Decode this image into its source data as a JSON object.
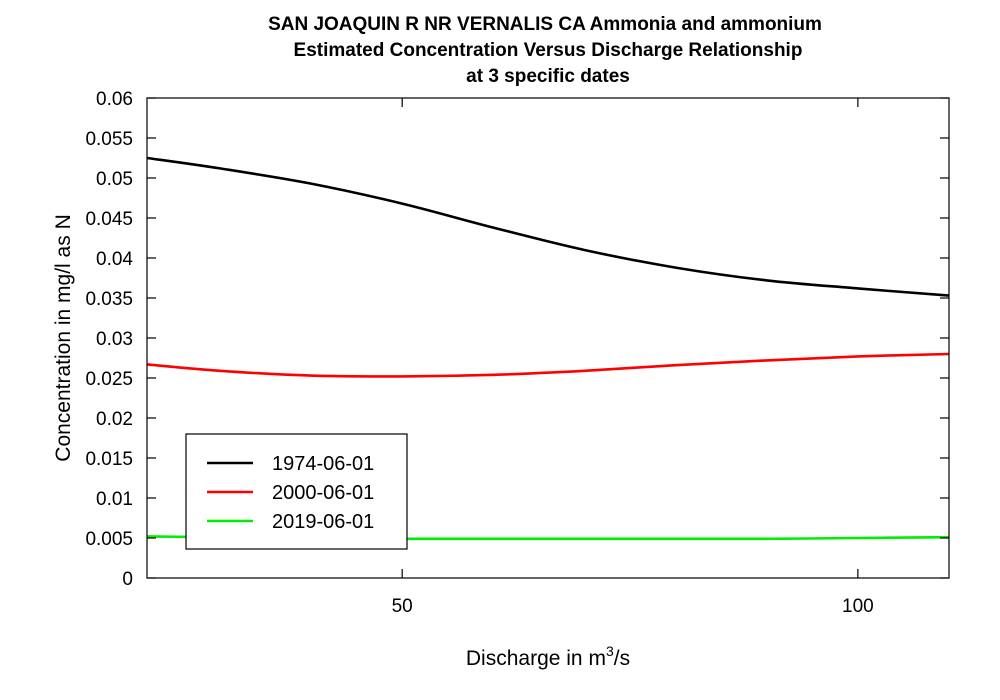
{
  "chart_data": {
    "type": "line",
    "title_lines": [
      "SAN JOAQUIN R NR VERNALIS CA    Ammonia and ammonium",
      "Estimated Concentration Versus Discharge Relationship",
      "at 3 specific dates"
    ],
    "xlabel_main": "Discharge in m",
    "xlabel_sup": "3",
    "xlabel_tail": "/s",
    "ylabel": "Concentration in mg/l as N",
    "xlim": [
      22,
      110
    ],
    "ylim": [
      0,
      0.06
    ],
    "x_ticks": [
      50,
      100
    ],
    "x_tick_labels": [
      "50",
      "100"
    ],
    "y_ticks": [
      0,
      0.005,
      0.01,
      0.015,
      0.02,
      0.025,
      0.03,
      0.035,
      0.04,
      0.045,
      0.05,
      0.055,
      0.06
    ],
    "y_tick_labels": [
      "0",
      "0.005",
      "0.01",
      "0.015",
      "0.02",
      "0.025",
      "0.03",
      "0.035",
      "0.04",
      "0.045",
      "0.05",
      "0.055",
      "0.06"
    ],
    "legend_position": "bottom-left",
    "grid": false,
    "series": [
      {
        "name": "1974-06-01",
        "color": "#000000",
        "x": [
          22,
          30,
          40,
          50,
          60,
          70,
          80,
          90,
          100,
          110
        ],
        "y": [
          0.0525,
          0.0512,
          0.0493,
          0.0468,
          0.0438,
          0.041,
          0.0388,
          0.0372,
          0.0362,
          0.0353
        ]
      },
      {
        "name": "2000-06-01",
        "color": "#ff0000",
        "x": [
          22,
          30,
          40,
          50,
          60,
          70,
          80,
          90,
          100,
          110
        ],
        "y": [
          0.0267,
          0.0259,
          0.0253,
          0.0252,
          0.0254,
          0.0259,
          0.0266,
          0.0272,
          0.0277,
          0.028
        ]
      },
      {
        "name": "2019-06-01",
        "color": "#00ee00",
        "x": [
          22,
          30,
          40,
          50,
          60,
          70,
          80,
          90,
          100,
          110
        ],
        "y": [
          0.0052,
          0.0051,
          0.005,
          0.0049,
          0.0049,
          0.0049,
          0.0049,
          0.0049,
          0.005,
          0.0051
        ]
      }
    ]
  }
}
